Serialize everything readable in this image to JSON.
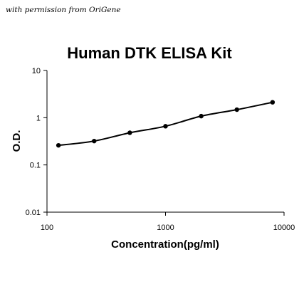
{
  "credit": "with permission from OriGene",
  "chart_data": {
    "type": "scatter",
    "title": "Human DTK ELISA Kit",
    "xlabel": "Concentration(pg/ml)",
    "ylabel": "O.D.",
    "x_scale": "log",
    "y_scale": "log",
    "xlim": [
      100,
      10000
    ],
    "ylim": [
      0.01,
      10
    ],
    "x_ticks": [
      "100",
      "1000",
      "10000"
    ],
    "y_ticks": [
      "0.01",
      "0.1",
      "1",
      "10"
    ],
    "grid": false,
    "series": [
      {
        "x": [
          125,
          250,
          500,
          1000,
          2000,
          4000,
          8000
        ],
        "y": [
          0.26,
          0.32,
          0.48,
          0.66,
          1.08,
          1.48,
          2.12
        ]
      }
    ],
    "marker_color": "#000000",
    "line_color": "#000000"
  }
}
